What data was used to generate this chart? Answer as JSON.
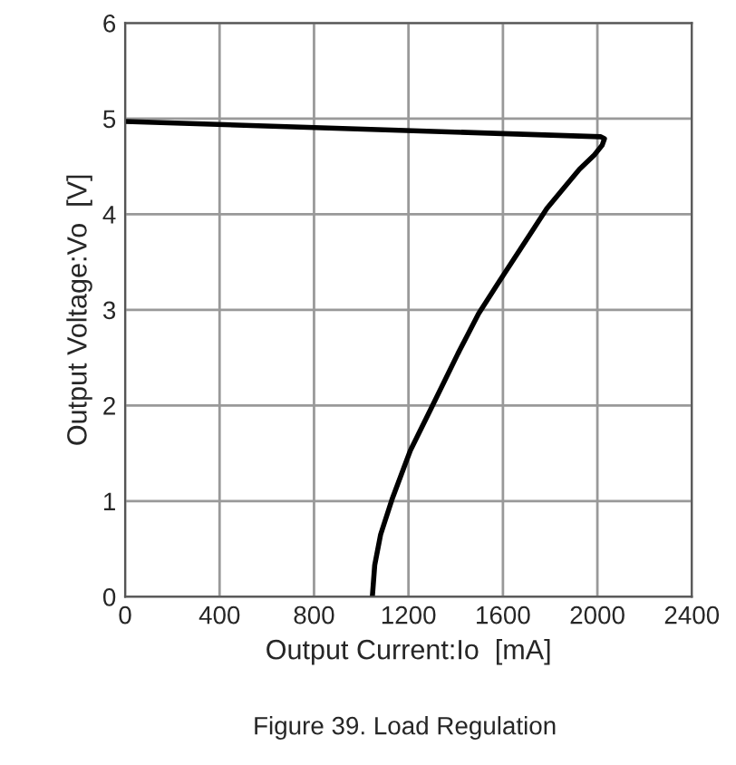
{
  "chart_data": {
    "type": "line",
    "title": "Figure 39. Load Regulation",
    "xlabel": "Output Current:Io  [mA]",
    "ylabel": "Output Voltage:Vo  [V]",
    "series": [
      {
        "color": "#000000",
        "x": [
          0,
          2013,
          2030,
          2020,
          1987,
          1924,
          1860,
          1786,
          1686,
          1585,
          1497,
          1409,
          1296,
          1208,
          1132,
          1082,
          1057,
          1047
        ],
        "values": [
          4.97,
          4.81,
          4.79,
          4.72,
          4.62,
          4.47,
          4.28,
          4.06,
          3.68,
          3.3,
          2.96,
          2.54,
          1.97,
          1.53,
          1.03,
          0.65,
          0.33,
          0
        ]
      }
    ],
    "xlim": [
      0,
      2400
    ],
    "xticks": [
      0,
      400,
      800,
      1200,
      1600,
      2000,
      2400
    ],
    "ylim": [
      0,
      6
    ],
    "yticks": [
      0,
      1,
      2,
      3,
      4,
      5,
      6
    ],
    "grid": true,
    "legend": false,
    "marker": "none",
    "line_style": "solid"
  }
}
